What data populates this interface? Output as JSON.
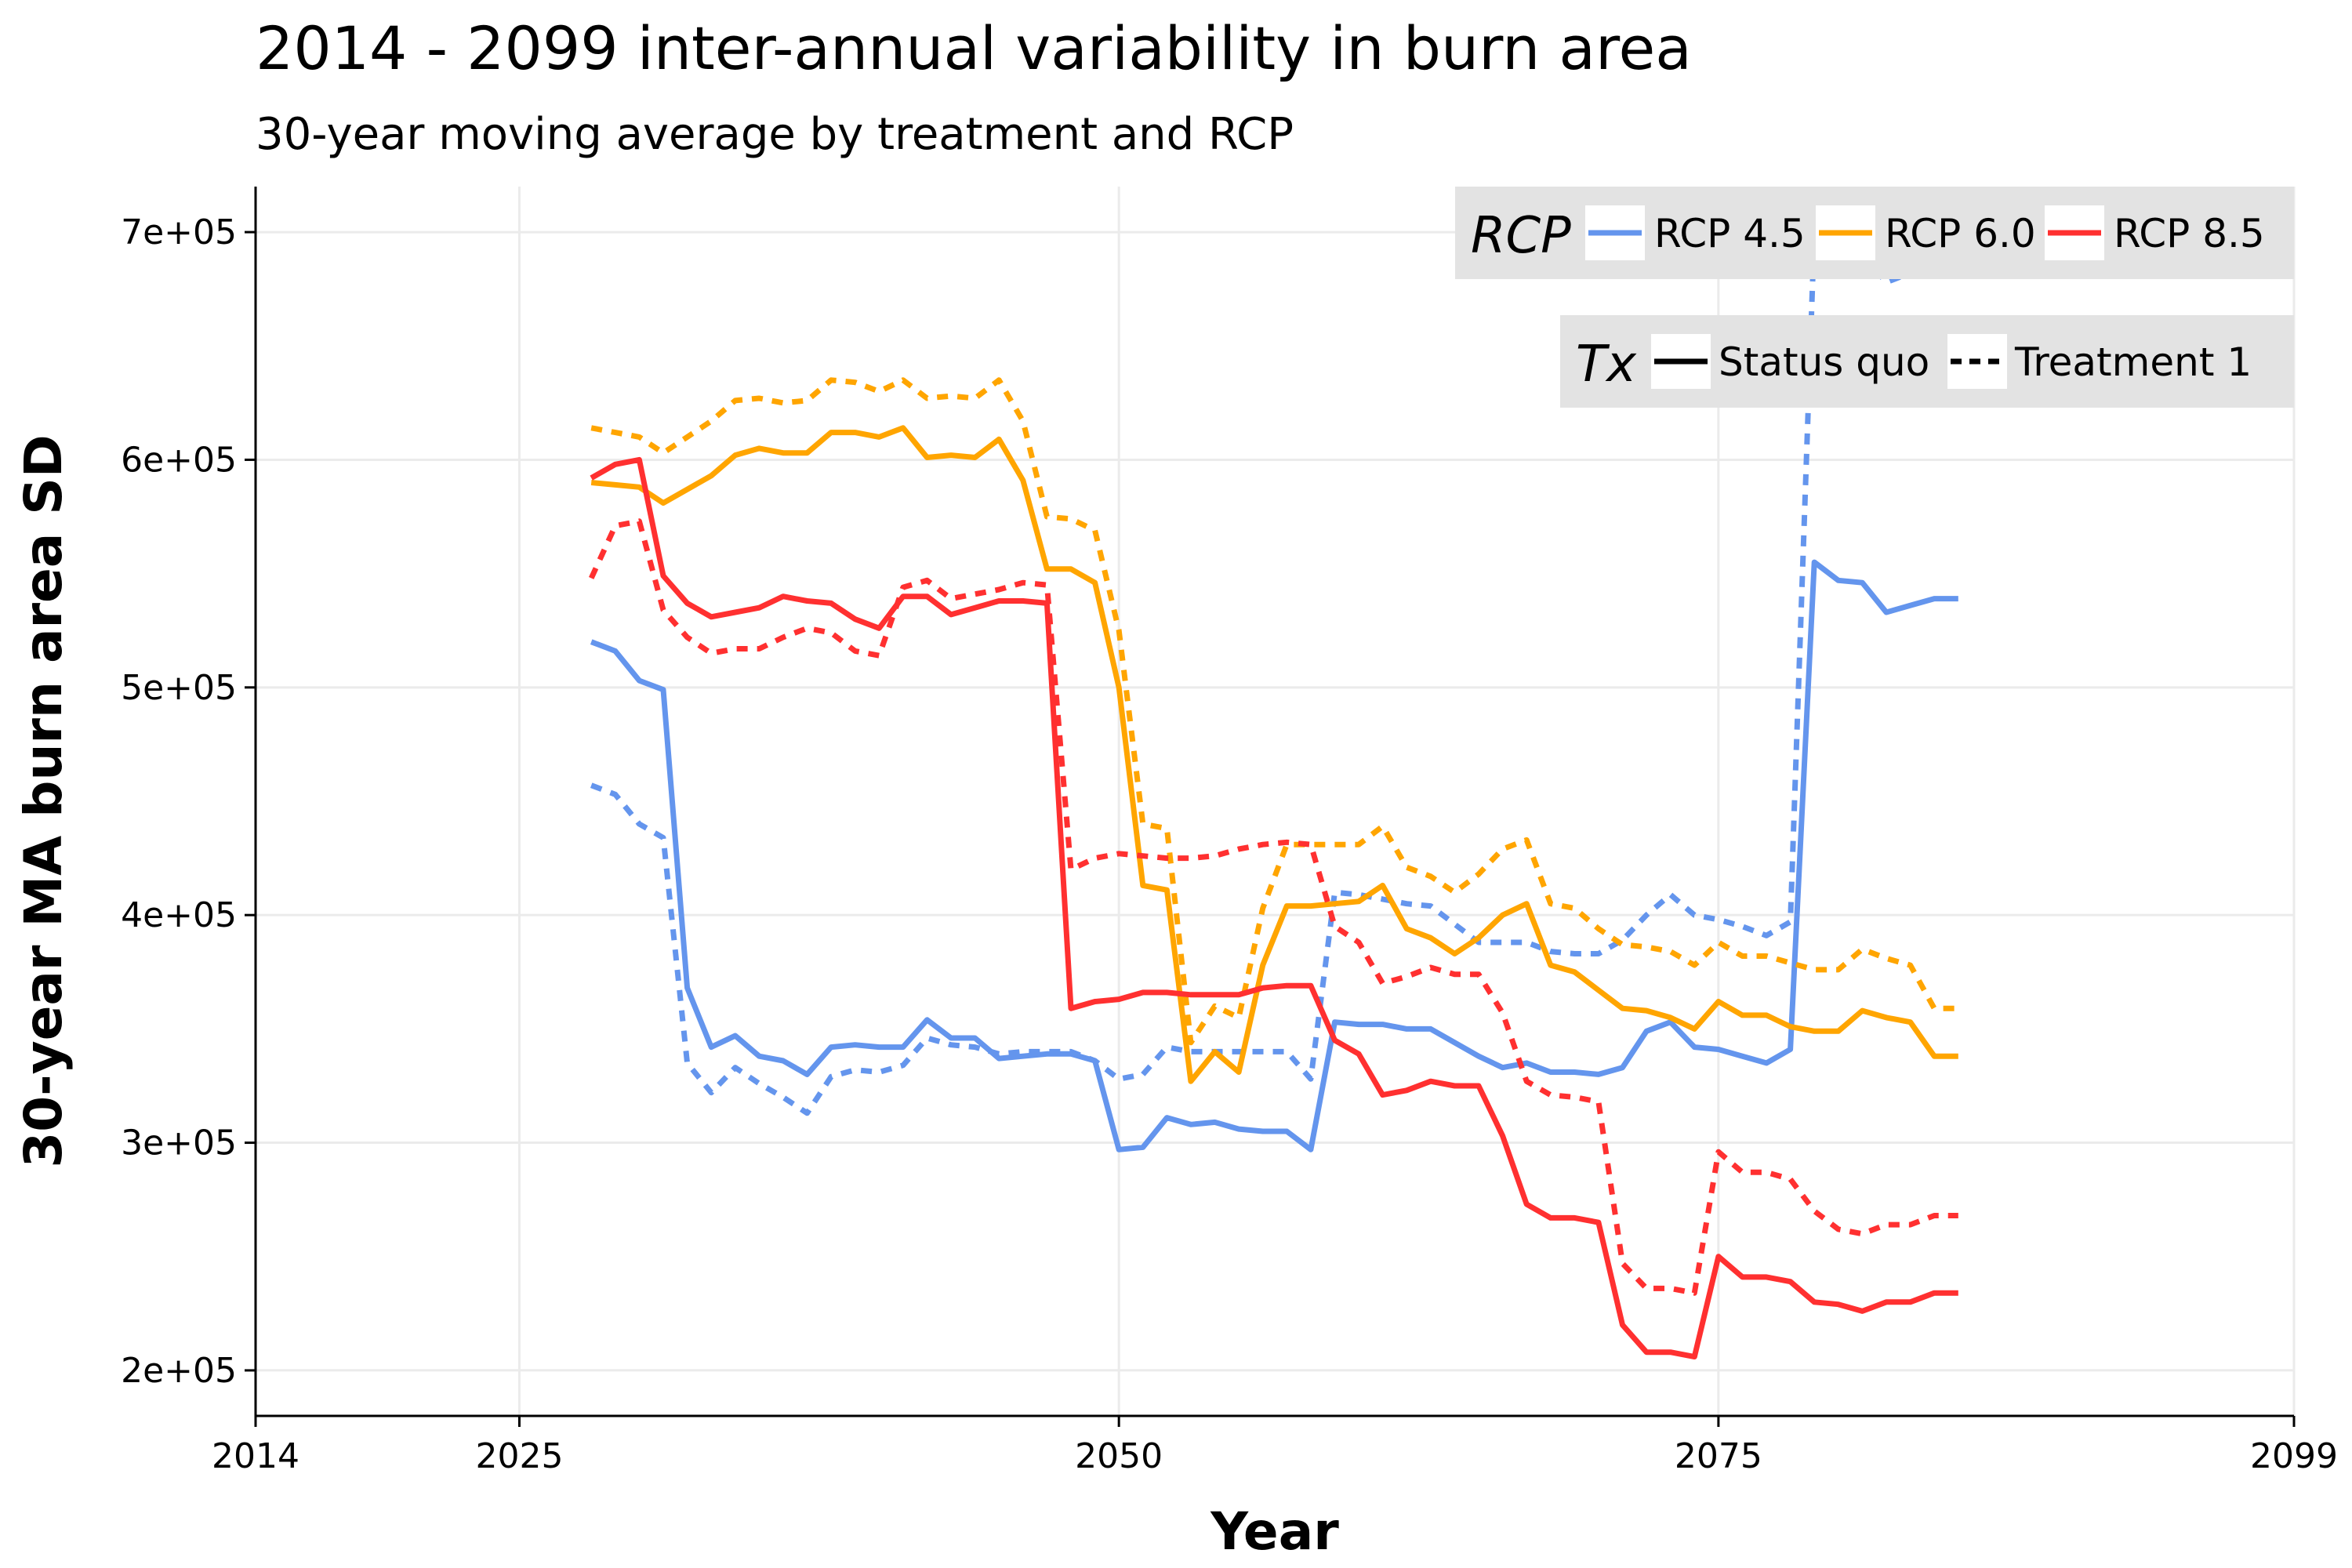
{
  "chart_data": {
    "type": "line",
    "title": "2014 - 2099 inter-annual variability in burn area",
    "subtitle": "30-year moving average by treatment and RCP",
    "xlabel": "Year",
    "ylabel": "30-year MA burn area SD",
    "xlim": [
      2014,
      2099
    ],
    "ylim": [
      180000,
      720000
    ],
    "x_ticks": [
      2014,
      2025,
      2050,
      2075,
      2099
    ],
    "x_tick_labels": [
      "2014",
      "2025",
      "2050",
      "2075",
      "2099"
    ],
    "y_ticks": [
      200000,
      300000,
      400000,
      500000,
      600000,
      700000
    ],
    "y_tick_labels": [
      "2e+05",
      "3e+05",
      "4e+05",
      "5e+05",
      "6e+05",
      "7e+05"
    ],
    "grid": true,
    "legend_placement": "top-right",
    "legends": {
      "rcp": {
        "title": "RCP",
        "entries": [
          {
            "label": "RCP 4.5",
            "color": "#6495ed"
          },
          {
            "label": "RCP 6.0",
            "color": "#ffa500"
          },
          {
            "label": "RCP 8.5",
            "color": "#ff3030"
          }
        ]
      },
      "tx": {
        "title": "Tx",
        "entries": [
          {
            "label": "Status quo",
            "dash": "solid"
          },
          {
            "label": "Treatment 1",
            "dash": "dashed"
          }
        ]
      }
    },
    "x": [
      2028,
      2029,
      2030,
      2031,
      2032,
      2033,
      2034,
      2035,
      2036,
      2037,
      2038,
      2039,
      2040,
      2041,
      2042,
      2043,
      2044,
      2045,
      2046,
      2047,
      2048,
      2049,
      2050,
      2051,
      2052,
      2053,
      2054,
      2055,
      2056,
      2057,
      2058,
      2059,
      2060,
      2061,
      2062,
      2063,
      2064,
      2065,
      2066,
      2067,
      2068,
      2069,
      2070,
      2071,
      2072,
      2073,
      2074,
      2075,
      2076,
      2077,
      2078,
      2079,
      2080,
      2081,
      2082,
      2083,
      2084,
      2085
    ],
    "series": [
      {
        "rcp": "RCP 4.5",
        "tx": "Status quo",
        "color": "#6495ed",
        "dash": "solid",
        "values": [
          520000,
          516000,
          503000,
          499000,
          368000,
          342000,
          347000,
          338000,
          336000,
          330000,
          342000,
          343000,
          342000,
          342000,
          354000,
          346000,
          346000,
          337000,
          338000,
          339000,
          339000,
          336000,
          297000,
          298000,
          311000,
          308000,
          309000,
          306000,
          305000,
          305000,
          297000,
          353000,
          352000,
          352000,
          350000,
          350000,
          344000,
          338000,
          333000,
          335000,
          331000,
          331000,
          330000,
          333000,
          349000,
          353000,
          342000,
          341000,
          338000,
          335000,
          341000,
          555000,
          547000,
          546000,
          533000,
          536000,
          539000,
          539000
        ]
      },
      {
        "rcp": "RCP 4.5",
        "tx": "Treatment 1",
        "color": "#6495ed",
        "dash": "dashed",
        "values": [
          457000,
          453000,
          440000,
          434000,
          335000,
          322000,
          333000,
          326000,
          320000,
          313000,
          329000,
          332000,
          331000,
          334000,
          346000,
          343000,
          342000,
          339000,
          340000,
          340000,
          340000,
          336000,
          328000,
          330000,
          342000,
          340000,
          340000,
          340000,
          340000,
          340000,
          328000,
          410000,
          409000,
          407000,
          405000,
          404000,
          396000,
          388000,
          388000,
          388000,
          384000,
          383000,
          383000,
          389000,
          400000,
          409000,
          400000,
          398000,
          395000,
          391000,
          397000,
          700000,
          694000,
          690000,
          678000,
          682000,
          684000,
          684000
        ]
      },
      {
        "rcp": "RCP 6.0",
        "tx": "Status quo",
        "color": "#ffa500",
        "dash": "solid",
        "values": [
          590000,
          589000,
          588000,
          581000,
          587000,
          593000,
          602000,
          605000,
          603000,
          603000,
          612000,
          612000,
          610000,
          614000,
          601000,
          602000,
          601000,
          609000,
          591000,
          552000,
          552000,
          546000,
          500000,
          413000,
          411000,
          327000,
          340000,
          331000,
          378000,
          404000,
          404000,
          405000,
          406000,
          413000,
          394000,
          390000,
          383000,
          390000,
          400000,
          405000,
          378000,
          375000,
          367000,
          359000,
          358000,
          355000,
          350000,
          362000,
          356000,
          356000,
          351000,
          349000,
          349000,
          358000,
          355000,
          353000,
          338000,
          338000
        ]
      },
      {
        "rcp": "RCP 6.0",
        "tx": "Treatment 1",
        "color": "#ffa500",
        "dash": "dashed",
        "values": [
          614000,
          612000,
          610000,
          603000,
          610000,
          617000,
          626000,
          627000,
          625000,
          626000,
          635000,
          634000,
          630000,
          635000,
          627000,
          628000,
          627000,
          635000,
          617000,
          575000,
          574000,
          569000,
          525000,
          440000,
          438000,
          344000,
          360000,
          355000,
          403000,
          431000,
          431000,
          431000,
          431000,
          439000,
          421000,
          417000,
          410000,
          418000,
          429000,
          433000,
          405000,
          403000,
          394000,
          387000,
          386000,
          384000,
          378000,
          388000,
          382000,
          382000,
          379000,
          376000,
          376000,
          385000,
          381000,
          378000,
          359000,
          359000
        ]
      },
      {
        "rcp": "RCP 8.5",
        "tx": "Status quo",
        "color": "#ff3030",
        "dash": "solid",
        "values": [
          592000,
          598000,
          600000,
          549000,
          537000,
          531000,
          533000,
          535000,
          540000,
          538000,
          537000,
          530000,
          526000,
          540000,
          540000,
          532000,
          535000,
          538000,
          538000,
          537000,
          359000,
          362000,
          363000,
          366000,
          366000,
          365000,
          365000,
          365000,
          368000,
          369000,
          369000,
          345000,
          339000,
          321000,
          323000,
          327000,
          325000,
          325000,
          303000,
          273000,
          267000,
          267000,
          265000,
          220000,
          208000,
          208000,
          206000,
          250000,
          241000,
          241000,
          239000,
          230000,
          229000,
          226000,
          230000,
          230000,
          234000,
          234000
        ]
      },
      {
        "rcp": "RCP 8.5",
        "tx": "Treatment 1",
        "color": "#ff3030",
        "dash": "dashed",
        "values": [
          548000,
          571000,
          573000,
          534000,
          522000,
          515000,
          517000,
          517000,
          522000,
          526000,
          524000,
          516000,
          514000,
          544000,
          547000,
          539000,
          541000,
          543000,
          546000,
          545000,
          420000,
          425000,
          427000,
          426000,
          425000,
          425000,
          426000,
          429000,
          431000,
          432000,
          431000,
          395000,
          388000,
          370000,
          373000,
          377000,
          374000,
          374000,
          357000,
          327000,
          321000,
          320000,
          318000,
          247000,
          236000,
          236000,
          234000,
          296000,
          287000,
          287000,
          284000,
          270000,
          262000,
          260000,
          264000,
          264000,
          268000,
          268000
        ]
      }
    ]
  }
}
